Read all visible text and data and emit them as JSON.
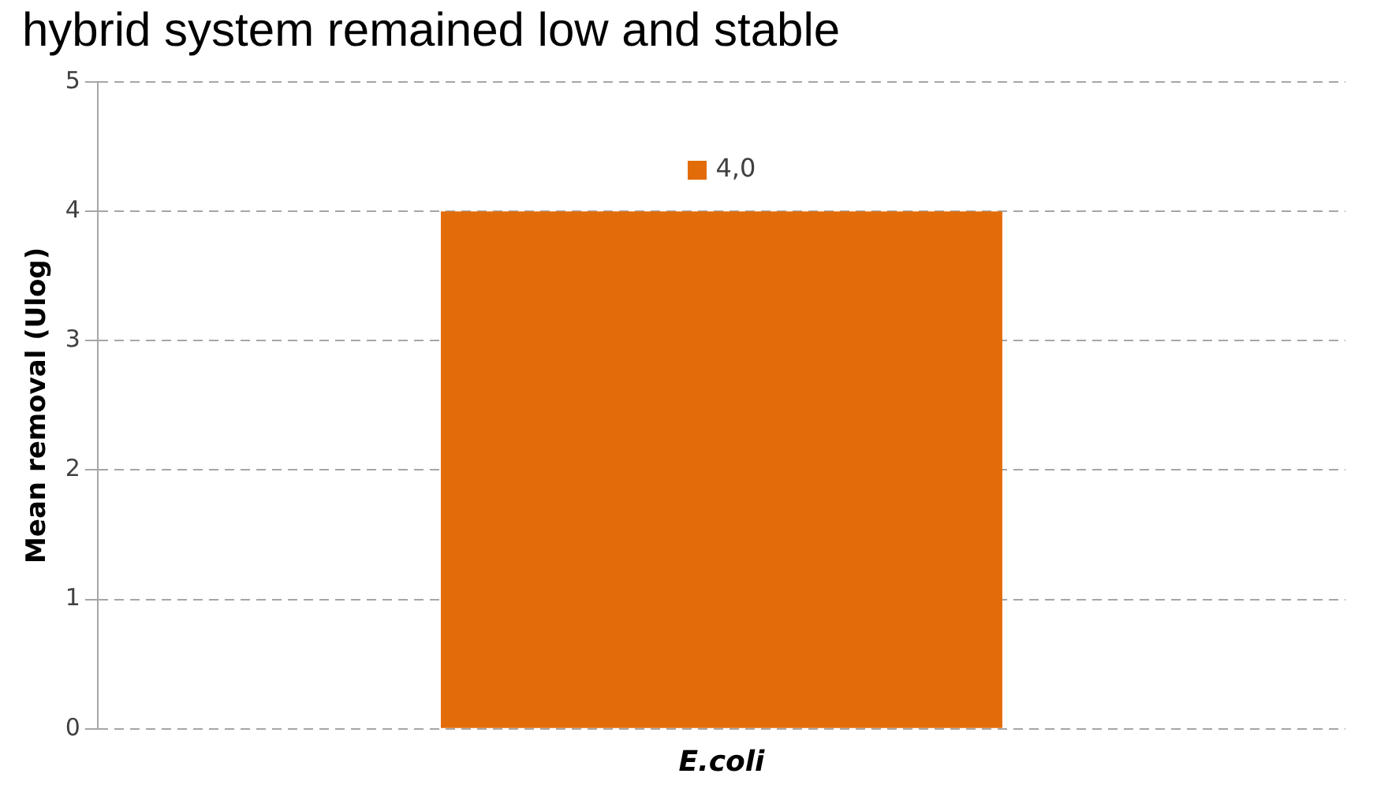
{
  "chart_data": {
    "type": "bar",
    "ylabel": "Mean removal (Ulog)",
    "annotations": [
      "hybrid system remained low and stable"
    ],
    "categories": [
      "E.coli"
    ],
    "values": [
      4.0
    ],
    "color": "#e36c0a",
    "value_labels": [
      "4,0"
    ],
    "ylim": [
      0,
      5
    ],
    "yticks": [
      0,
      1,
      2,
      3,
      4,
      5
    ],
    "grid": "y",
    "legend": false
  }
}
